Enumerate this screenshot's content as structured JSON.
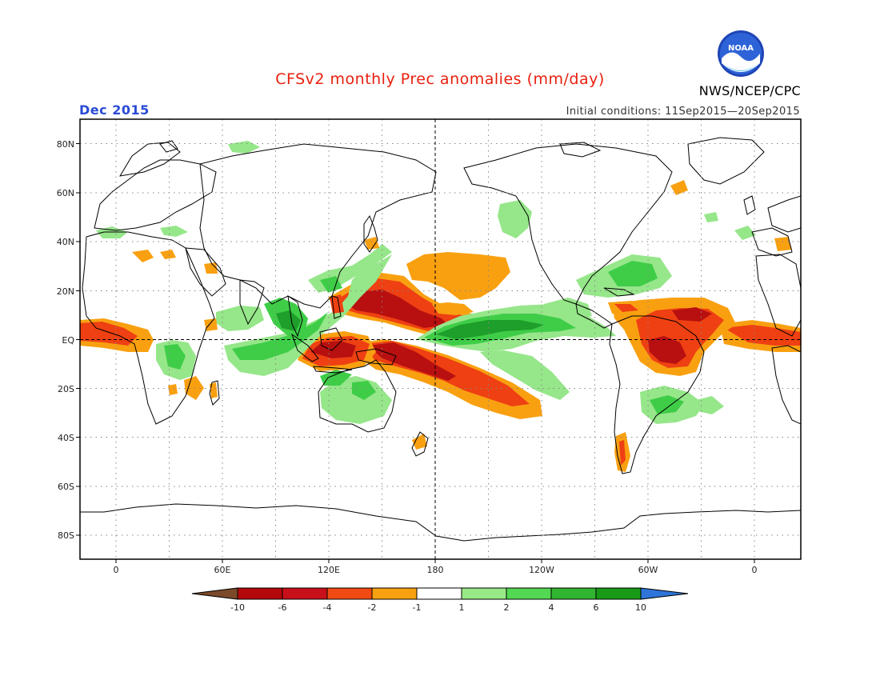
{
  "header": {
    "title": "CFSv2 monthly Prec anomalies (mm/day)",
    "month": "Dec 2015",
    "initial_conditions": "Initial conditions: 11Sep2015—20Sep2015",
    "agency": "NWS/NCEP/CPC",
    "logo_text": "NOAA"
  },
  "axes": {
    "lat_labels": [
      "80N",
      "60N",
      "40N",
      "20N",
      "EQ",
      "20S",
      "40S",
      "60S",
      "80S"
    ],
    "lon_labels": [
      "0",
      "60E",
      "120E",
      "180",
      "120W",
      "60W",
      "0"
    ]
  },
  "colorbar": {
    "labels": [
      "-10",
      "-6",
      "-4",
      "-2",
      "-1",
      "1",
      "2",
      "4",
      "6",
      "10"
    ],
    "colors": [
      "#7b4a2a",
      "#b4070a",
      "#c8101a",
      "#f04a12",
      "#f7a010",
      "#ffffff",
      "#97ea86",
      "#52d852",
      "#30b530",
      "#189a18",
      "#2f74d8"
    ]
  },
  "map_colors": {
    "dark_red": "#b81010",
    "red": "#ee4012",
    "orange": "#f9a011",
    "light_green": "#96e68a",
    "green": "#3fcd48",
    "dark_green": "#1e9e2a",
    "coast": "#000000"
  }
}
